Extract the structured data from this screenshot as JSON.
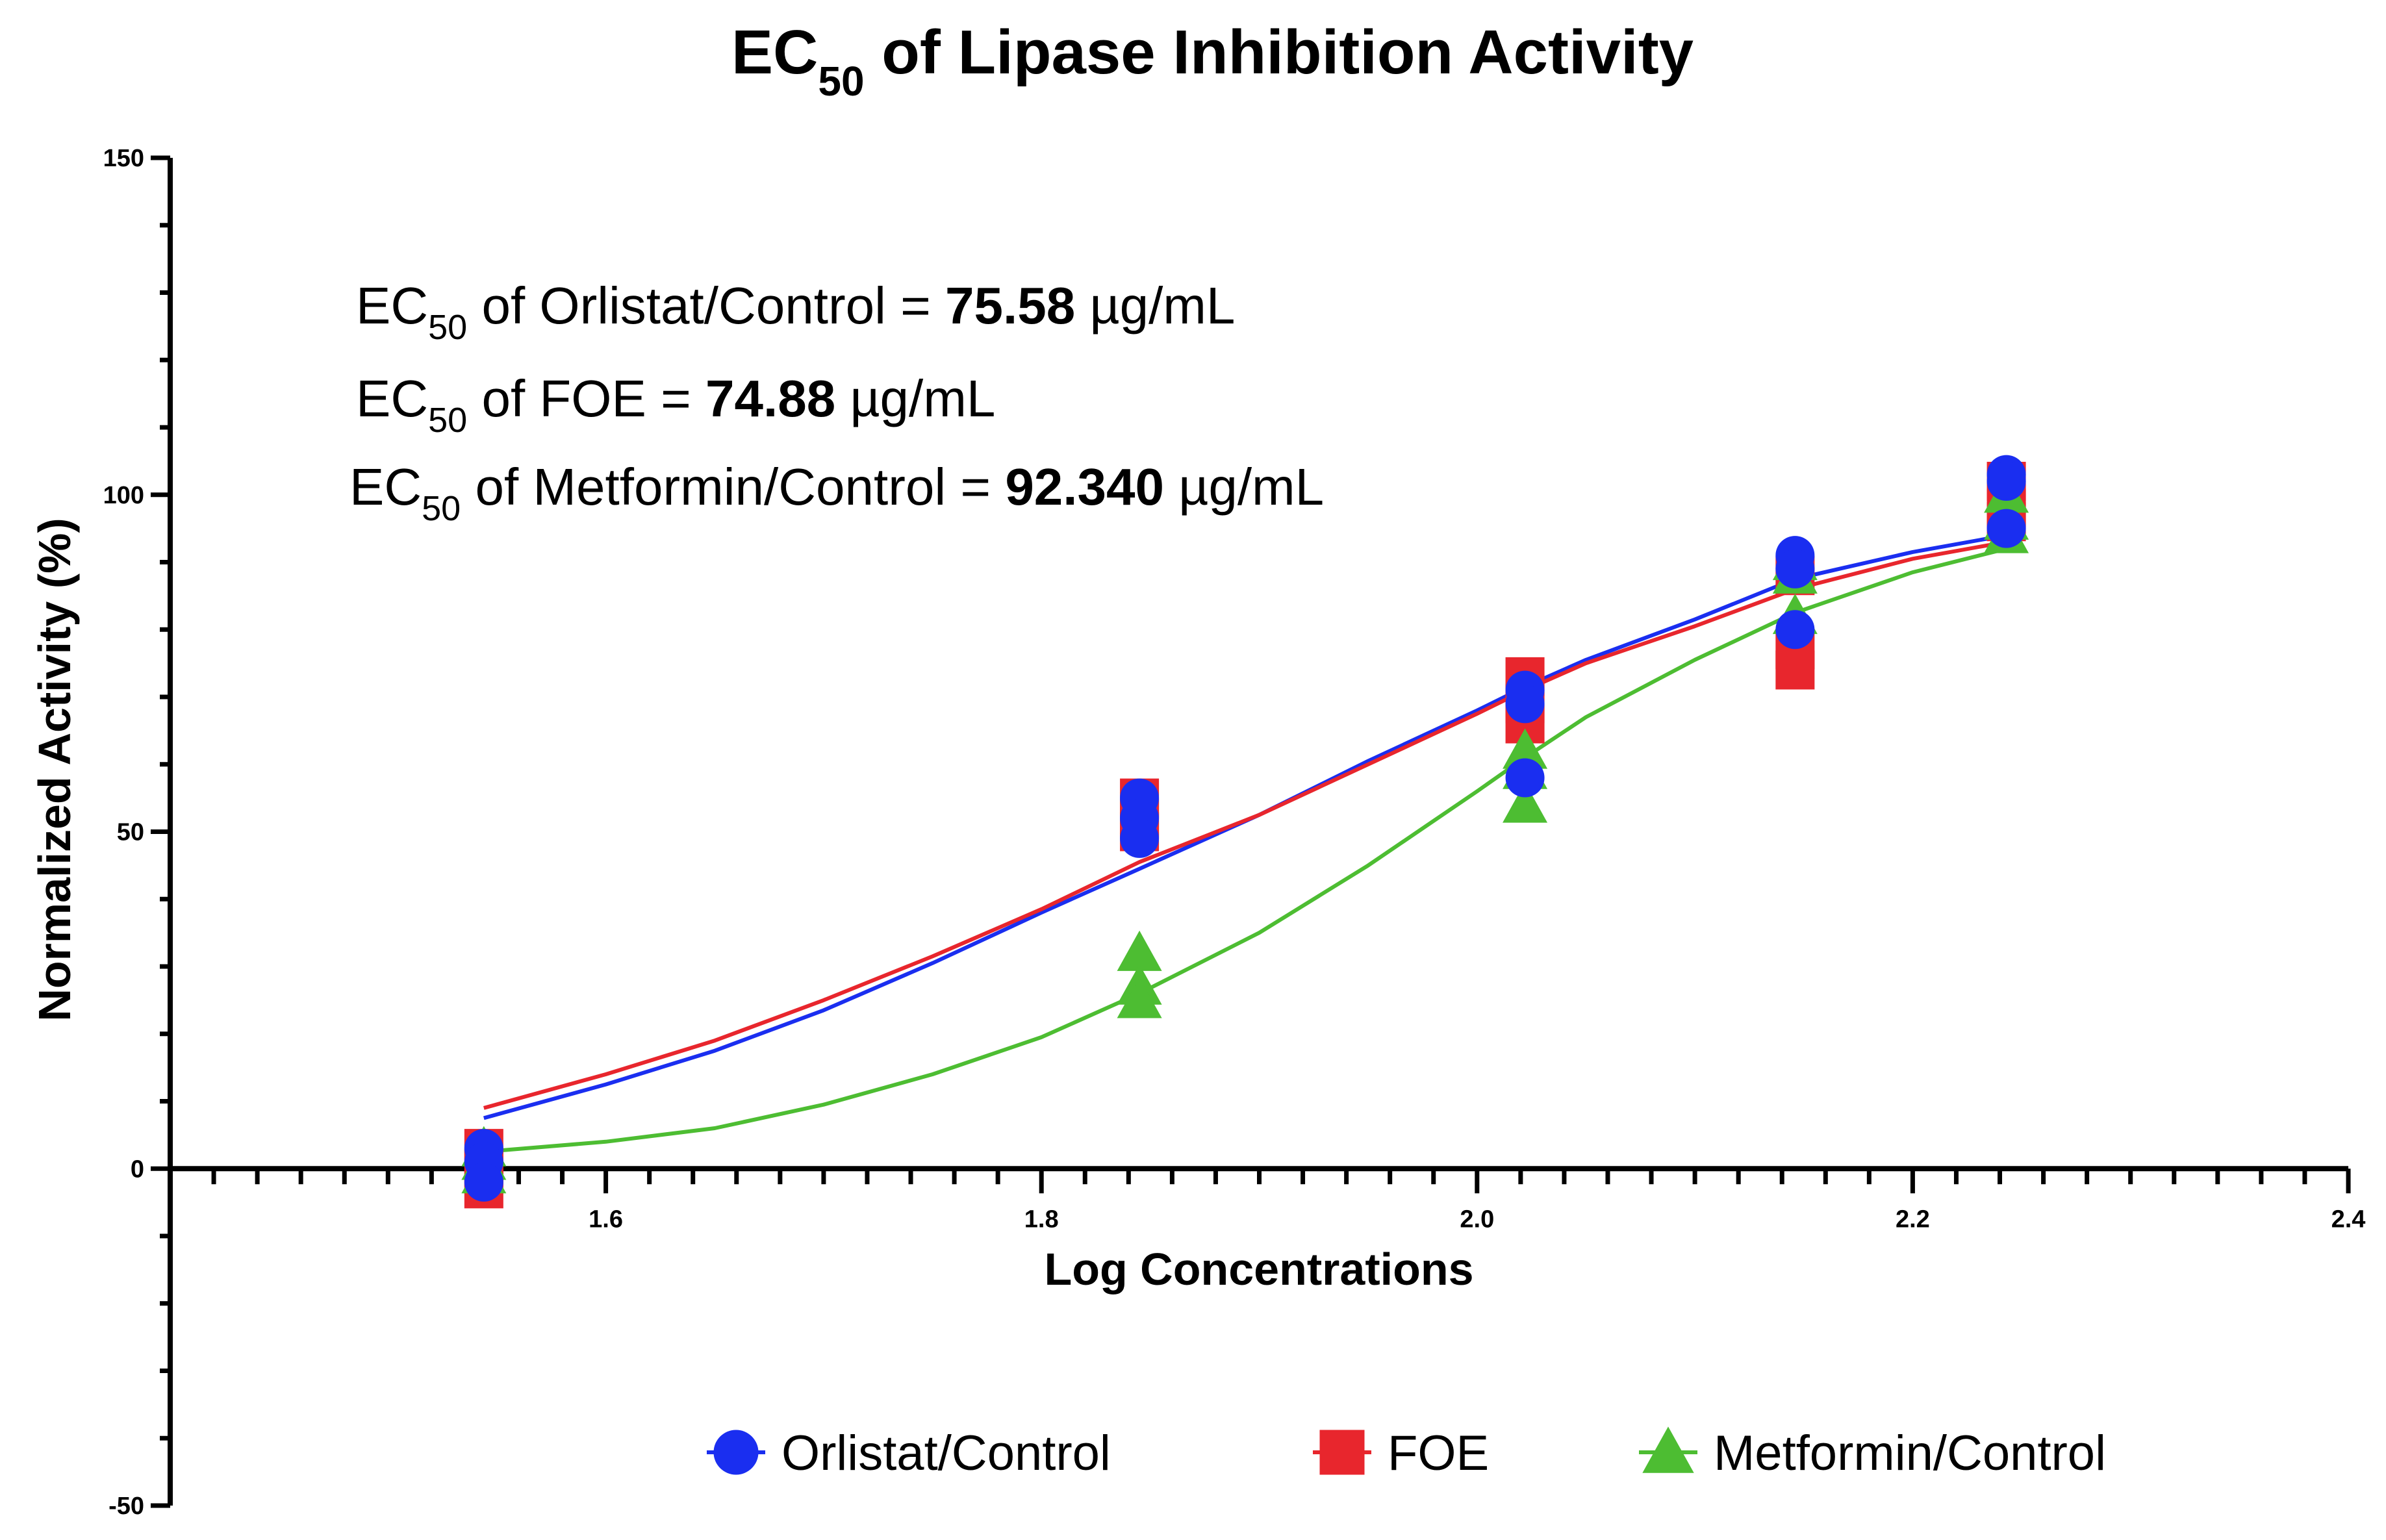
{
  "chart_data": {
    "type": "scatter",
    "title": {
      "prefix": "EC",
      "sub": "50",
      "suffix": " of Lipase Inhibition Activity"
    },
    "xlabel": "Log Concentrations",
    "ylabel": "Normalized Activity (%)",
    "xlim": [
      1.4,
      2.4
    ],
    "ylim": [
      -50,
      150
    ],
    "x_ticks": [
      "1.6",
      "1.8",
      "2.0",
      "2.2",
      "2.4"
    ],
    "y_ticks": [
      "150",
      "100",
      "50",
      "0",
      "-50"
    ],
    "annotations": [
      {
        "prefix": "EC",
        "sub": "50",
        "label": " of Orlistat/Control = ",
        "value": "75.58",
        "unit": " µg/mL"
      },
      {
        "prefix": "EC",
        "sub": "50",
        "label": " of FOE = ",
        "value": "74.88",
        "unit": " µg/mL"
      },
      {
        "prefix": "EC",
        "sub": "50",
        "label": " of Metformin/Control = ",
        "value": "92.340",
        "unit": " µg/mL"
      }
    ],
    "legend_position": "bottom",
    "series": [
      {
        "name": "Orlistat/Control",
        "color": "#1a2ef0",
        "marker": "circle",
        "points": [
          [
            1.544,
            3
          ],
          [
            1.544,
            1
          ],
          [
            1.544,
            -2
          ],
          [
            1.845,
            55
          ],
          [
            1.845,
            52
          ],
          [
            1.845,
            49
          ],
          [
            2.022,
            71
          ],
          [
            2.022,
            69
          ],
          [
            2.022,
            58
          ],
          [
            2.146,
            91
          ],
          [
            2.146,
            89
          ],
          [
            2.146,
            80
          ],
          [
            2.243,
            103
          ],
          [
            2.243,
            102
          ],
          [
            2.243,
            95
          ]
        ],
        "curve": [
          [
            1.544,
            7.5
          ],
          [
            1.6,
            12.5
          ],
          [
            1.65,
            17.5
          ],
          [
            1.7,
            23.5
          ],
          [
            1.75,
            30.5
          ],
          [
            1.8,
            38
          ],
          [
            1.845,
            44.5
          ],
          [
            1.9,
            52.5
          ],
          [
            1.95,
            60.5
          ],
          [
            2.0,
            68
          ],
          [
            2.022,
            71.5
          ],
          [
            2.05,
            75.5
          ],
          [
            2.1,
            81.5
          ],
          [
            2.146,
            87.5
          ],
          [
            2.2,
            91.5
          ],
          [
            2.243,
            94
          ]
        ]
      },
      {
        "name": "FOE",
        "color": "#e8262d",
        "marker": "square",
        "points": [
          [
            1.544,
            3
          ],
          [
            1.544,
            0
          ],
          [
            1.544,
            -3
          ],
          [
            1.845,
            55
          ],
          [
            1.845,
            52
          ],
          [
            1.845,
            50
          ],
          [
            2.022,
            73
          ],
          [
            2.022,
            69
          ],
          [
            2.022,
            66
          ],
          [
            2.146,
            88
          ],
          [
            2.146,
            77
          ],
          [
            2.146,
            74
          ],
          [
            2.243,
            102
          ],
          [
            2.243,
            98
          ],
          [
            2.243,
            96
          ]
        ],
        "curve": [
          [
            1.544,
            9
          ],
          [
            1.6,
            14
          ],
          [
            1.65,
            19
          ],
          [
            1.7,
            25
          ],
          [
            1.75,
            31.5
          ],
          [
            1.8,
            38.5
          ],
          [
            1.845,
            45.5
          ],
          [
            1.9,
            52.5
          ],
          [
            1.95,
            60
          ],
          [
            2.0,
            67.5
          ],
          [
            2.022,
            71
          ],
          [
            2.05,
            75
          ],
          [
            2.1,
            80.5
          ],
          [
            2.146,
            86
          ],
          [
            2.2,
            90.5
          ],
          [
            2.243,
            93
          ]
        ]
      },
      {
        "name": "Metformin/Control",
        "color": "#4dbd32",
        "marker": "triangle",
        "points": [
          [
            1.544,
            3
          ],
          [
            1.544,
            1
          ],
          [
            1.544,
            -1
          ],
          [
            1.845,
            32
          ],
          [
            1.845,
            27
          ],
          [
            1.845,
            25
          ],
          [
            2.022,
            62
          ],
          [
            2.022,
            59
          ],
          [
            2.022,
            54
          ],
          [
            2.146,
            90
          ],
          [
            2.146,
            88
          ],
          [
            2.146,
            82
          ],
          [
            2.243,
            100
          ],
          [
            2.243,
            96
          ],
          [
            2.243,
            94
          ]
        ],
        "curve": [
          [
            1.544,
            2.5
          ],
          [
            1.6,
            4
          ],
          [
            1.65,
            6
          ],
          [
            1.7,
            9.5
          ],
          [
            1.75,
            14
          ],
          [
            1.8,
            19.5
          ],
          [
            1.845,
            26
          ],
          [
            1.9,
            35
          ],
          [
            1.95,
            45
          ],
          [
            2.0,
            56
          ],
          [
            2.022,
            61
          ],
          [
            2.05,
            67
          ],
          [
            2.1,
            75.5
          ],
          [
            2.146,
            82.5
          ],
          [
            2.2,
            88.5
          ],
          [
            2.243,
            92
          ]
        ]
      }
    ]
  }
}
